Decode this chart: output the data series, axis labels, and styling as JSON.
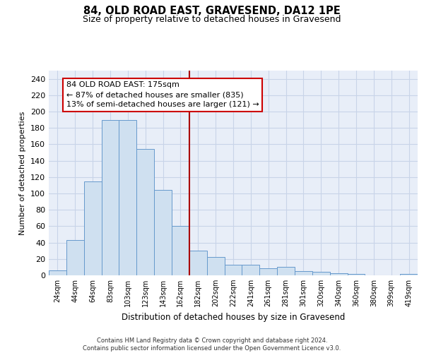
{
  "title": "84, OLD ROAD EAST, GRAVESEND, DA12 1PE",
  "subtitle": "Size of property relative to detached houses in Gravesend",
  "xlabel": "Distribution of detached houses by size in Gravesend",
  "ylabel": "Number of detached properties",
  "bar_values": [
    6,
    43,
    115,
    190,
    190,
    154,
    104,
    60,
    30,
    22,
    13,
    13,
    9,
    10,
    5,
    4,
    3,
    2,
    0,
    0,
    2
  ],
  "tick_labels": [
    "24sqm",
    "44sqm",
    "64sqm",
    "83sqm",
    "103sqm",
    "123sqm",
    "143sqm",
    "162sqm",
    "182sqm",
    "202sqm",
    "222sqm",
    "241sqm",
    "261sqm",
    "281sqm",
    "301sqm",
    "320sqm",
    "340sqm",
    "360sqm",
    "380sqm",
    "399sqm",
    "419sqm"
  ],
  "bar_color": "#cfe0f0",
  "bar_edge_color": "#6699cc",
  "grid_color": "#c8d4e8",
  "background_color": "#e8eef8",
  "vline_x": 7.5,
  "vline_color": "#aa0000",
  "annotation_text": "84 OLD ROAD EAST: 175sqm\n← 87% of detached houses are smaller (835)\n13% of semi-detached houses are larger (121) →",
  "annotation_box_color": "#cc0000",
  "ylim": [
    0,
    250
  ],
  "yticks": [
    0,
    20,
    40,
    60,
    80,
    100,
    120,
    140,
    160,
    180,
    200,
    220,
    240
  ],
  "footer_line1": "Contains HM Land Registry data © Crown copyright and database right 2024.",
  "footer_line2": "Contains public sector information licensed under the Open Government Licence v3.0."
}
